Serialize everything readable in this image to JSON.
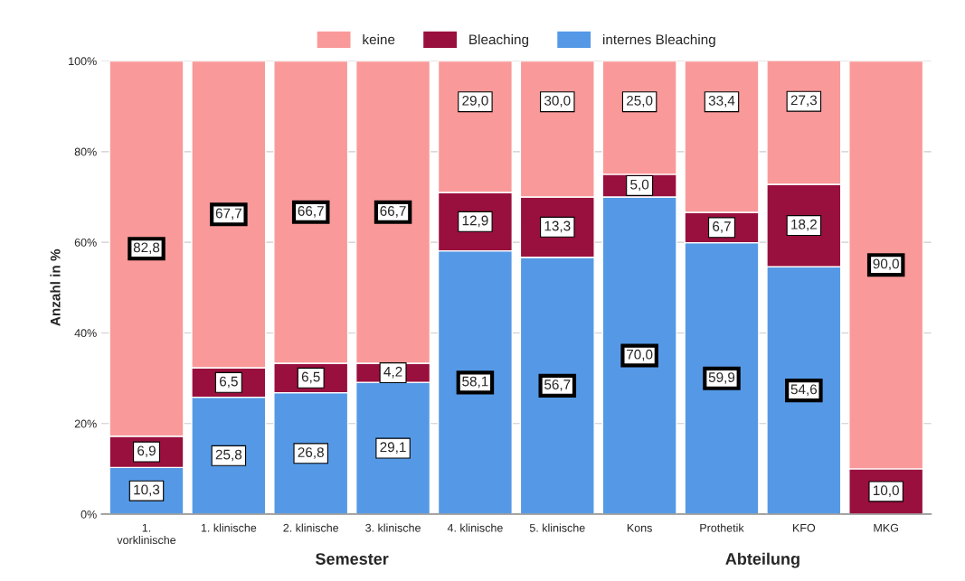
{
  "chart_data": {
    "type": "bar",
    "stacked": true,
    "ylabel": "Anzahl in %",
    "categories": [
      "1.\nvorklinische",
      "1. klinische",
      "2. klinische",
      "3. klinische",
      "4. klinische",
      "5. klinische",
      "Kons",
      "Prothetik",
      "KFO",
      "MKG"
    ],
    "series": [
      {
        "name": "internes Bleaching",
        "color": "#5599e6",
        "values": [
          10.3,
          25.8,
          26.8,
          29.1,
          58.1,
          56.7,
          70.0,
          59.9,
          54.6,
          0
        ],
        "value_labels": [
          "10,3",
          "25,8",
          "26,8",
          "29,1",
          "58,1",
          "56,7",
          "70,0",
          "59,9",
          "54,6",
          null
        ]
      },
      {
        "name": "Bleaching",
        "color": "#990f3d",
        "values": [
          6.9,
          6.5,
          6.5,
          4.2,
          12.9,
          13.3,
          5.0,
          6.7,
          18.2,
          10.0
        ],
        "value_labels": [
          "6,9",
          "6,5",
          "6,5",
          "4,2",
          "12,9",
          "13,3",
          "5,0",
          "6,7",
          "18,2",
          "10,0"
        ]
      },
      {
        "name": "keine",
        "color": "#fa9999",
        "values": [
          82.8,
          67.7,
          66.7,
          66.7,
          29.0,
          30.0,
          25.0,
          33.4,
          27.3,
          90.0
        ],
        "value_labels": [
          "82,8",
          "67,7",
          "66,7",
          "66,7",
          "29,0",
          "30,0",
          "25,0",
          "33,4",
          "27,3",
          "90,0"
        ]
      }
    ],
    "ylim": [
      0,
      100
    ],
    "yticks": [
      {
        "value": 0,
        "label": "0%"
      },
      {
        "value": 20,
        "label": "20%"
      },
      {
        "value": 40,
        "label": "40%"
      },
      {
        "value": 60,
        "label": "60%"
      },
      {
        "value": 80,
        "label": "80%"
      },
      {
        "value": 100,
        "label": "100%"
      }
    ],
    "grid": "y",
    "legend": "top",
    "annotations": [
      "Semester",
      "Abteilung"
    ]
  }
}
